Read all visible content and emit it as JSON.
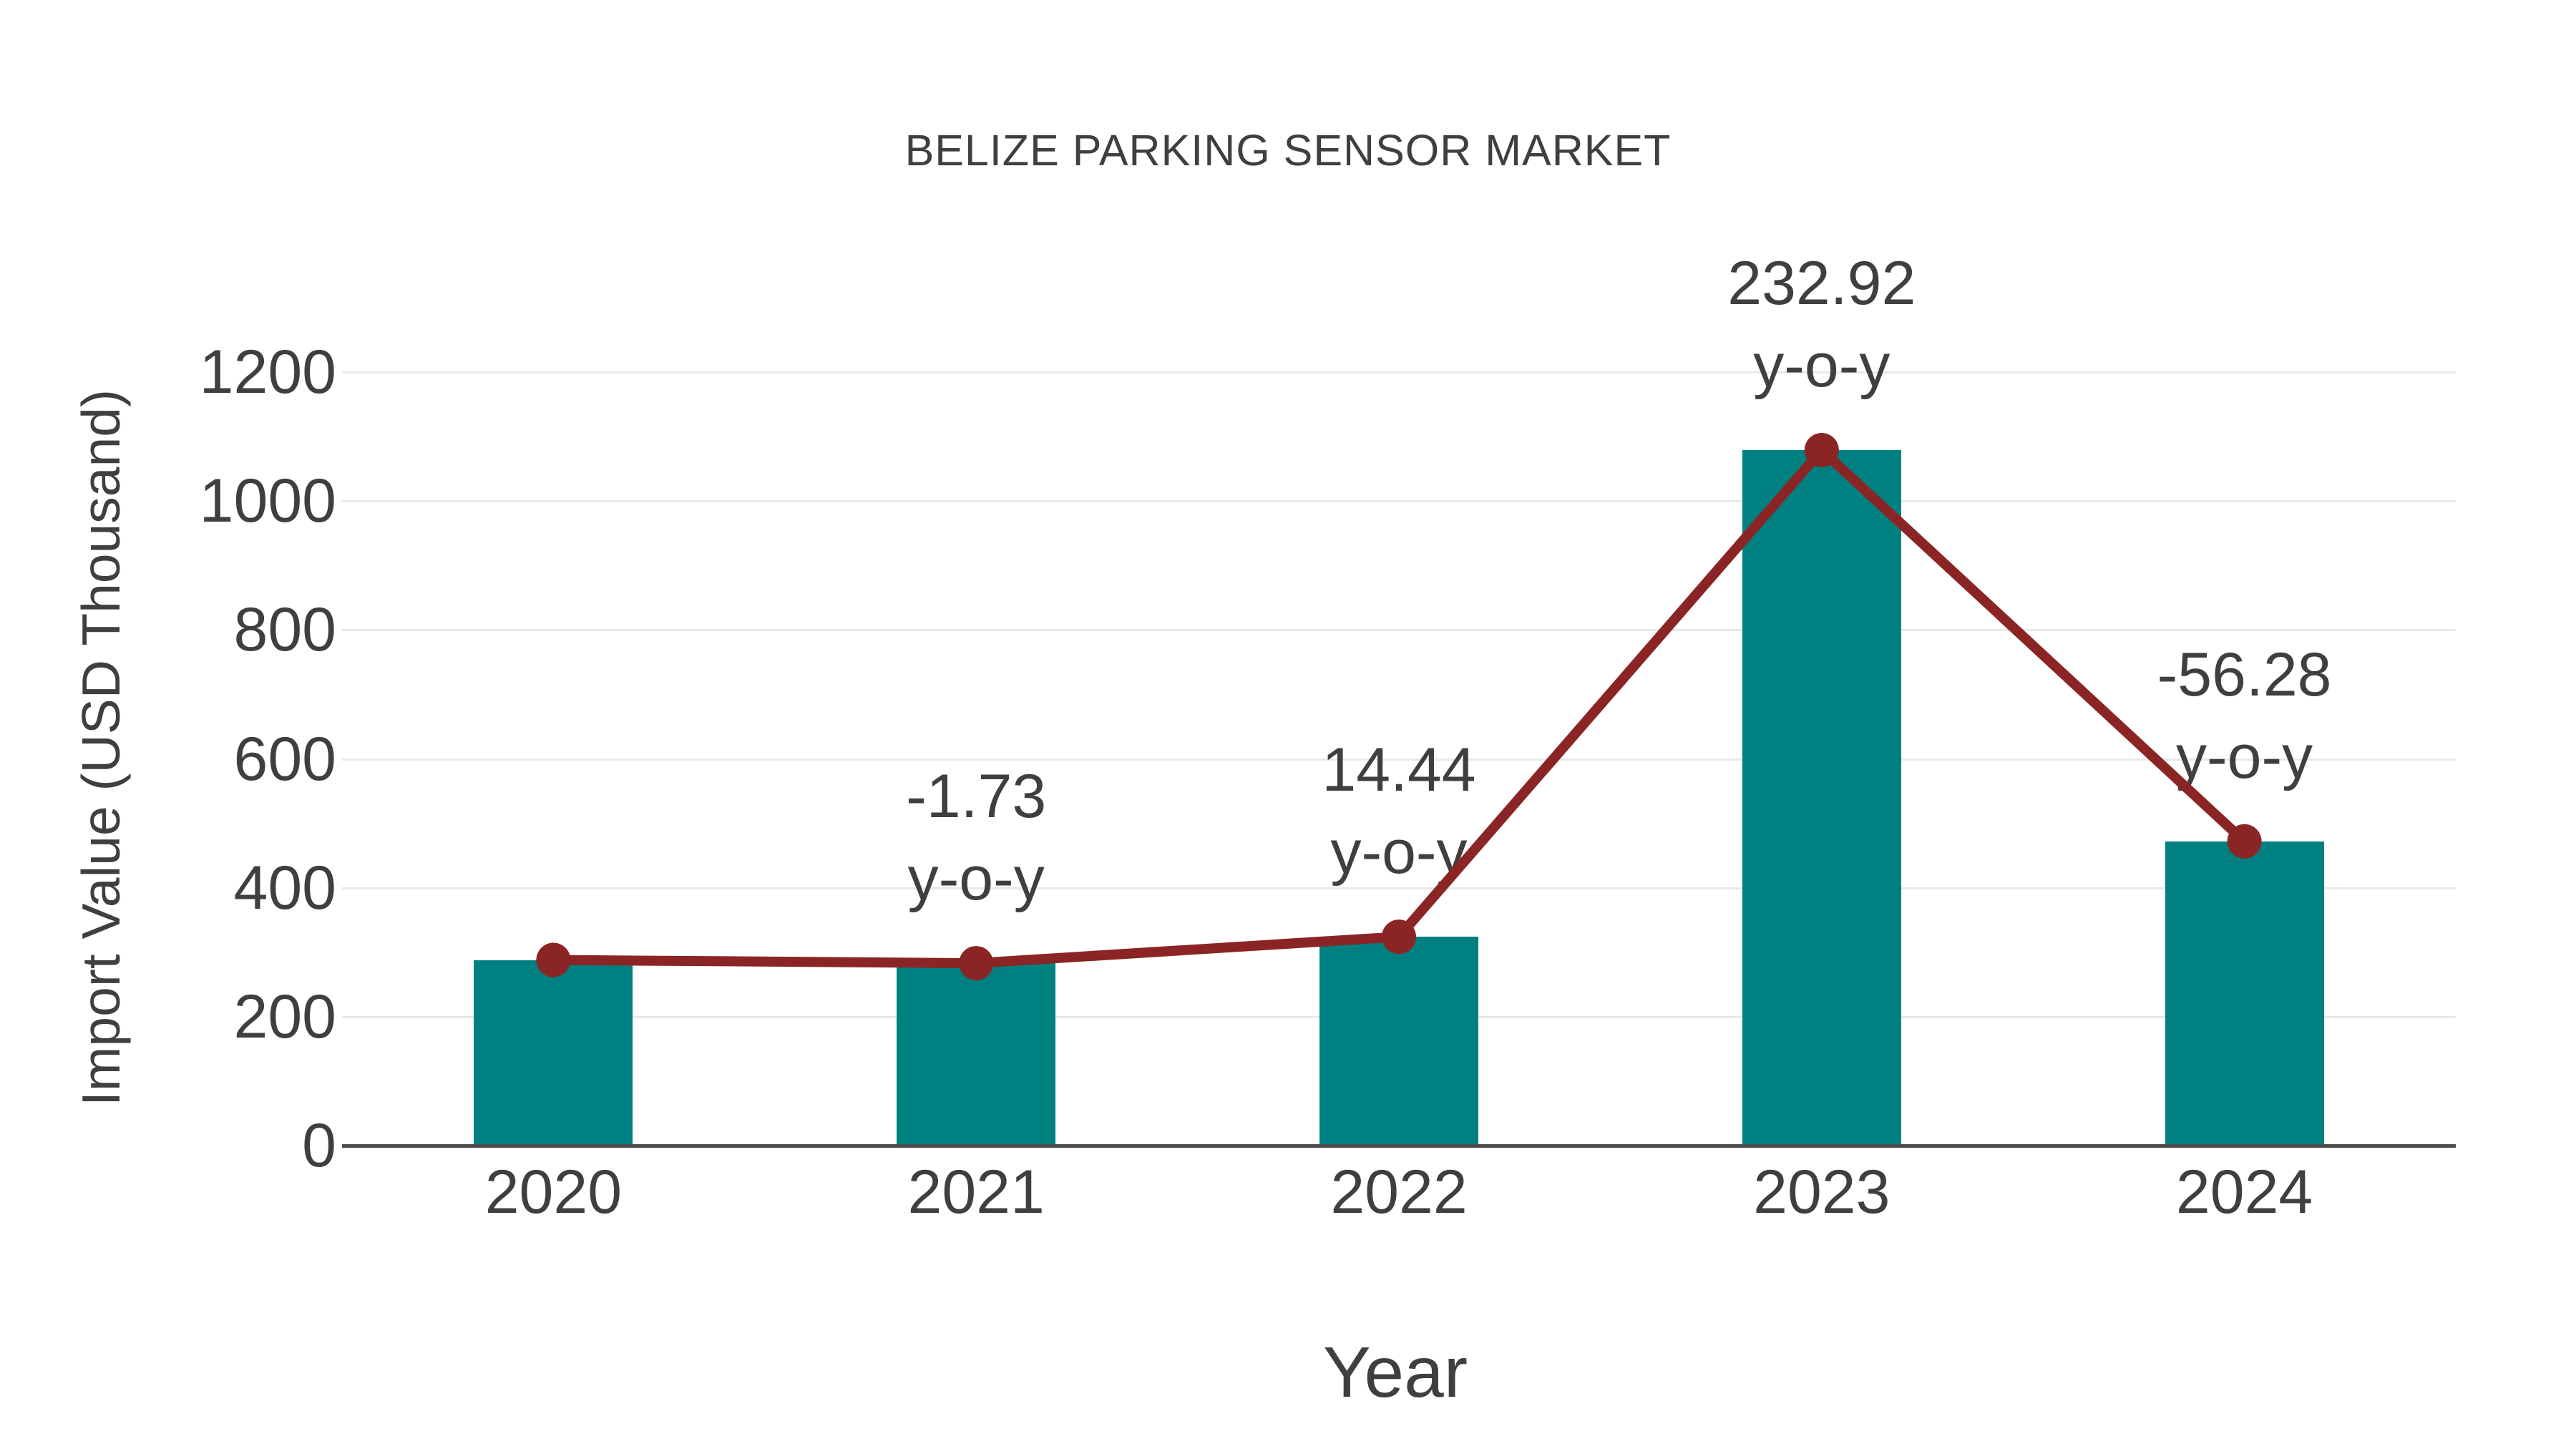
{
  "chart_data": {
    "type": "bar",
    "title": "BELIZE PARKING SENSOR MARKET",
    "xlabel": "Year",
    "ylabel": "Import Value (USD Thousand)",
    "categories": [
      "2020",
      "2021",
      "2022",
      "2023",
      "2024"
    ],
    "series": [
      {
        "name": "import-value-bars",
        "type": "bar",
        "values": [
          288,
          283,
          324,
          1079,
          472
        ]
      },
      {
        "name": "import-value-trend-line",
        "type": "line",
        "values": [
          288,
          283,
          324,
          1079,
          472
        ]
      }
    ],
    "annotations": [
      {
        "category": "2021",
        "value_label": "-1.73",
        "suffix_label": "y-o-y"
      },
      {
        "category": "2022",
        "value_label": "14.44",
        "suffix_label": "y-o-y"
      },
      {
        "category": "2023",
        "value_label": "232.92",
        "suffix_label": "y-o-y"
      },
      {
        "category": "2024",
        "value_label": "-56.28",
        "suffix_label": "y-o-y"
      }
    ],
    "y_ticks": [
      "0",
      "200",
      "400",
      "600",
      "800",
      "1000",
      "1200"
    ],
    "ylim": [
      0,
      1200
    ],
    "grid": "horizontal",
    "legend": "none",
    "colors": {
      "bar": "#008080",
      "line": "#8b2525",
      "marker": "#8b2525",
      "text": "#3f3f3f",
      "grid": "#e8e8e8",
      "axis": "#4d4d4d"
    }
  }
}
